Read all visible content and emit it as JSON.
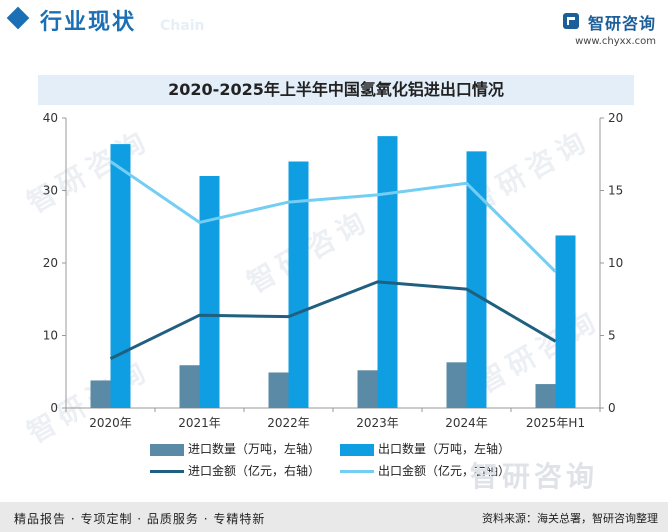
{
  "header": {
    "title": "行业现状",
    "ghost": "Chain",
    "brand_name": "智研咨询",
    "brand_url": "www.chyxx.com"
  },
  "watermark": {
    "text": "智研咨询",
    "footer_text": "智研咨询"
  },
  "colors": {
    "import_qty": "#5b8aa6",
    "export_qty": "#0f9ee2",
    "import_amt": "#1f5f80",
    "export_amt": "#74cdf2",
    "accent": "#1a6fb5"
  },
  "chart_data": {
    "type": "bar",
    "title": "2020-2025年上半年中国氢氧化铝进出口情况",
    "categories": [
      "2020年",
      "2021年",
      "2022年",
      "2023年",
      "2024年",
      "2025年H1"
    ],
    "y_left": {
      "ylim": [
        0,
        40
      ],
      "ticks": [
        "0",
        "10",
        "20",
        "30",
        "40"
      ]
    },
    "y_right": {
      "ylim": [
        0,
        20
      ],
      "ticks": [
        "0",
        "5",
        "10",
        "15",
        "20"
      ]
    },
    "series": [
      {
        "name": "进口数量（万吨，左轴）",
        "type": "bar",
        "axis": "left",
        "values": [
          3.8,
          5.9,
          4.9,
          5.2,
          6.3,
          3.3
        ]
      },
      {
        "name": "出口数量（万吨，左轴）",
        "type": "bar",
        "axis": "left",
        "values": [
          36.4,
          32.0,
          34.0,
          37.5,
          35.4,
          23.8
        ]
      },
      {
        "name": "进口金额（亿元，右轴）",
        "type": "line",
        "axis": "right",
        "values": [
          3.4,
          6.4,
          6.3,
          8.7,
          8.2,
          4.6
        ]
      },
      {
        "name": "出口金额（亿元，右轴）",
        "type": "line",
        "axis": "right",
        "values": [
          17.0,
          12.8,
          14.2,
          14.7,
          15.5,
          9.4
        ]
      }
    ],
    "grid": false,
    "legend_position": "bottom"
  },
  "footer": {
    "left": "精品报告 · 专项定制 · 品质服务 · 专精特新",
    "right": "资料来源：海关总署，智研咨询整理"
  }
}
